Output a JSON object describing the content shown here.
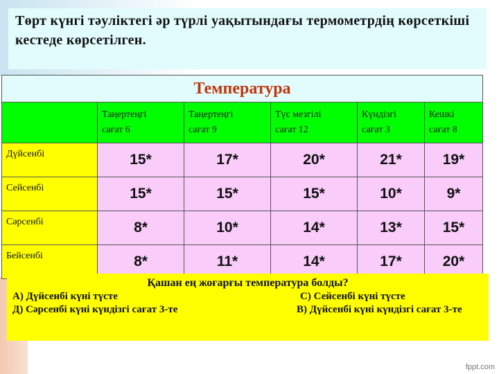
{
  "title": "Төрт күнгі  тәуліктегі әр түрлі уақытындағы термометрдің көрсеткіші кестеде көрсетілген.",
  "table": {
    "caption": "Температура",
    "columns": [
      [
        "Таңертеңгі",
        "сағат 6"
      ],
      [
        "Таңертеңгі",
        "сағат 9"
      ],
      [
        "Түс мезгілі",
        "сағат 12"
      ],
      [
        "Күндізгі",
        "сағат 3"
      ],
      [
        "Кешкі",
        "сағат 8"
      ]
    ],
    "rows": [
      {
        "day": "Дүйсенбі",
        "values": [
          "15*",
          "17*",
          "20*",
          "21*",
          "19*"
        ]
      },
      {
        "day": "Сейсенбі",
        "values": [
          "15*",
          "15*",
          "15*",
          "10*",
          "9*"
        ]
      },
      {
        "day": "Сәрсенбі",
        "values": [
          "8*",
          "10*",
          "14*",
          "13*",
          "15*"
        ]
      },
      {
        "day": "Бейсенбі",
        "values": [
          "8*",
          "11*",
          "14*",
          "17*",
          "20*"
        ]
      }
    ]
  },
  "quiz": {
    "question": "Қашан ең жоғарғы температура болды?",
    "a": "А)  Дүйсенбі күні түсте",
    "c": "С)  Сейсенбі күні түсте",
    "d": "Д)  Сәрсенбі күні күндізгі сағат 3-те",
    "b": "В)  Дүйсенбі күні күндізгі сағат 3-те"
  },
  "watermark": "fppt.com",
  "colors": {
    "header": "#00ff00",
    "day": "#ffff00",
    "cell": "#f9ccf9",
    "caption": "#c0360c"
  }
}
